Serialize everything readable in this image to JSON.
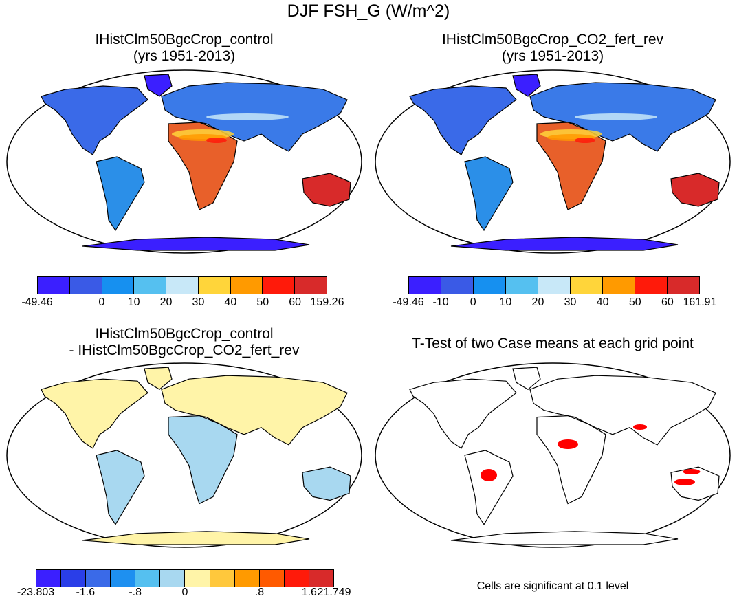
{
  "title": "DJF FSH_G (W/m^2)",
  "panels": [
    {
      "title_line1": "IHistClm50BgcCrop_control",
      "title_line2": "(yrs 1951-2013)",
      "colors": [
        "#3b1fff",
        "#3a5ae6",
        "#1690f0",
        "#55c0f0",
        "#c8e8f8",
        "#ffd53a",
        "#ff9a00",
        "#ff1a0a",
        "#d82a2a"
      ],
      "ticks": [
        "-49.46",
        "",
        "0",
        "10",
        "20",
        "30",
        "40",
        "50",
        "60",
        "159.26"
      ]
    },
    {
      "title_line1": "IHistClm50BgcCrop_CO2_fert_rev",
      "title_line2": "(yrs 1951-2013)",
      "colors": [
        "#3b1fff",
        "#3a5ae6",
        "#1690f0",
        "#55c0f0",
        "#c8e8f8",
        "#ffd53a",
        "#ff9a00",
        "#ff1a0a",
        "#d82a2a"
      ],
      "ticks": [
        "-49.46",
        "-10",
        "0",
        "10",
        "20",
        "30",
        "40",
        "50",
        "60",
        "161.91"
      ]
    },
    {
      "title_line1": "IHistClm50BgcCrop_control",
      "title_line2": "- IHistClm50BgcCrop_CO2_fert_rev",
      "colors": [
        "#3b1fff",
        "#2a3ee8",
        "#3a6ae8",
        "#1e90f0",
        "#55c0f0",
        "#a8d8f0",
        "#fff4a8",
        "#ffc83c",
        "#ff9a00",
        "#ff5a00",
        "#ff1a0a",
        "#d82a2a"
      ],
      "ticks": [
        "-23.803",
        "",
        "-1.6",
        "",
        "-.8",
        "",
        "0",
        "",
        "",
        ".8",
        "",
        "1.6",
        "21.749"
      ]
    },
    {
      "title_line1": "T-Test of two Case means at each grid point",
      "title_line2": ""
    }
  ],
  "note": "Cells are significant at 0.1 level",
  "land_color": "#ffffff",
  "ocean_color": "#ffffff",
  "coast_color": "#000000",
  "significance_color": "#ff0000"
}
